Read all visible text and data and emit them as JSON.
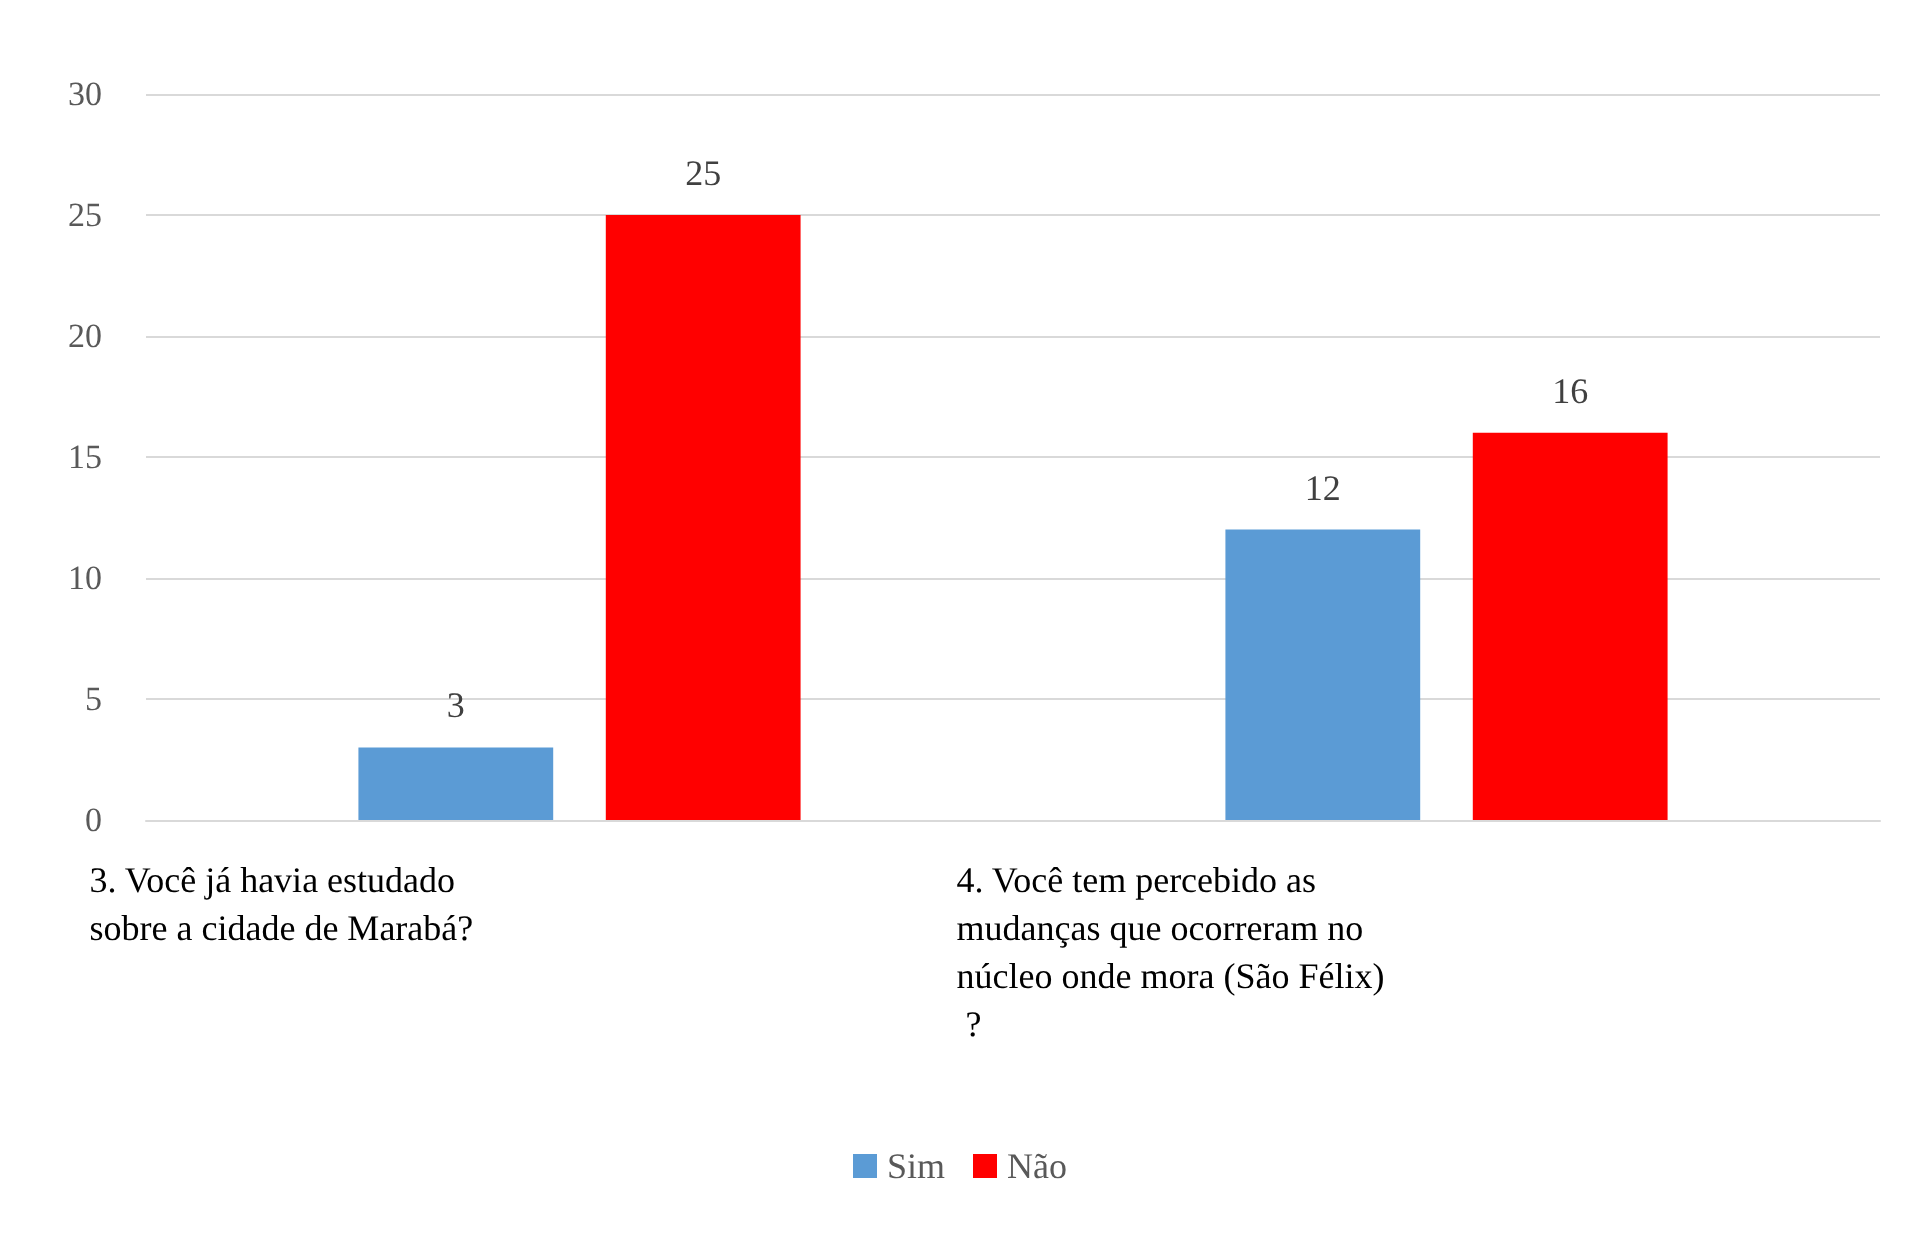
{
  "chart_data": {
    "type": "bar",
    "categories": [
      "3. Você já havia estudado sobre a cidade de Marabá?",
      "4. Você tem percebido as mudanças que ocorreram no núcleo onde mora (São Félix) ?"
    ],
    "series": [
      {
        "name": "Sim",
        "color": "#5b9bd5",
        "values": [
          3,
          12
        ]
      },
      {
        "name": "Não",
        "color": "#ff0000",
        "values": [
          25,
          16
        ]
      }
    ],
    "ylim": [
      0,
      30
    ],
    "yticks": [
      0,
      5,
      10,
      15,
      20,
      25,
      30
    ],
    "grid": "y",
    "legend": "bottom",
    "data_labels": true
  }
}
